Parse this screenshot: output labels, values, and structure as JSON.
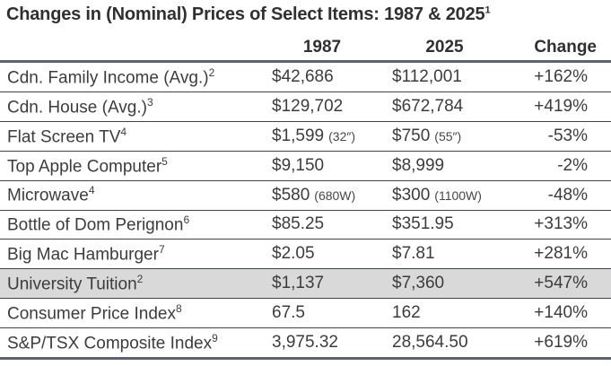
{
  "title": {
    "text": "Changes in (Nominal) Prices of Select Items: 1987 & 2025",
    "superscript": "1"
  },
  "header": {
    "y1987": "1987",
    "y2025": "2025",
    "change": "Change"
  },
  "table": {
    "rows": [
      {
        "item": "Cdn. Family Income (Avg.)",
        "sup": "2",
        "p1987": "$42,686",
        "n1987": "",
        "p2025": "$112,001",
        "n2025": "",
        "change": "+162%",
        "highlighted": false
      },
      {
        "item": "Cdn. House (Avg.)",
        "sup": "3",
        "p1987": "$129,702",
        "n1987": "",
        "p2025": "$672,784",
        "n2025": "",
        "change": "+419%",
        "highlighted": false
      },
      {
        "item": "Flat Screen TV",
        "sup": "4",
        "p1987": "$1,599",
        "n1987": "(32″)",
        "p2025": "$750",
        "n2025": "(55″)",
        "change": "-53%",
        "highlighted": false
      },
      {
        "item": "Top Apple Computer",
        "sup": "5",
        "p1987": "$9,150",
        "n1987": "",
        "p2025": "$8,999",
        "n2025": "",
        "change": "-2%",
        "highlighted": false
      },
      {
        "item": "Microwave",
        "sup": "4",
        "p1987": "$580",
        "n1987": "(680W)",
        "p2025": "$300",
        "n2025": "(1100W)",
        "change": "-48%",
        "highlighted": false
      },
      {
        "item": "Bottle of Dom Perignon",
        "sup": "6",
        "p1987": "$85.25",
        "n1987": "",
        "p2025": "$351.95",
        "n2025": "",
        "change": "+313%",
        "highlighted": false
      },
      {
        "item": "Big Mac Hamburger",
        "sup": "7",
        "p1987": "$2.05",
        "n1987": "",
        "p2025": "$7.81",
        "n2025": "",
        "change": "+281%",
        "highlighted": false
      },
      {
        "item": "University Tuition",
        "sup": "2",
        "p1987": "$1,137",
        "n1987": "",
        "p2025": "$7,360",
        "n2025": "",
        "change": "+547%",
        "highlighted": true
      },
      {
        "item": "Consumer Price Index",
        "sup": "8",
        "p1987": "67.5",
        "n1987": "",
        "p2025": "162",
        "n2025": "",
        "change": "+140%",
        "highlighted": false
      },
      {
        "item": "S&P/TSX Composite Index",
        "sup": "9",
        "p1987": "3,975.32",
        "n1987": "",
        "p2025": "28,564.50",
        "n2025": "",
        "change": "+619%",
        "highlighted": false
      }
    ]
  },
  "colors": {
    "highlight_row_bg": "#d9d9d9",
    "thick_border": "#59646e",
    "thin_border": "#3b444d",
    "text": "#3c3c3c",
    "title_text": "#303030"
  },
  "chart_data": {
    "type": "table",
    "title": "Changes in (Nominal) Prices of Select Items: 1987 & 2025¹",
    "columns": [
      "Item",
      "1987",
      "2025",
      "Change"
    ],
    "rows": [
      [
        "Cdn. Family Income (Avg.)²",
        "$42,686",
        "$112,001",
        "+162%"
      ],
      [
        "Cdn. House (Avg.)³",
        "$129,702",
        "$672,784",
        "+419%"
      ],
      [
        "Flat Screen TV⁴",
        "$1,599 (32″)",
        "$750 (55″)",
        "-53%"
      ],
      [
        "Top Apple Computer⁵",
        "$9,150",
        "$8,999",
        "-2%"
      ],
      [
        "Microwave⁴",
        "$580 (680W)",
        "$300 (1100W)",
        "-48%"
      ],
      [
        "Bottle of Dom Perignon⁶",
        "$85.25",
        "$351.95",
        "+313%"
      ],
      [
        "Big Mac Hamburger⁷",
        "$2.05",
        "$7.81",
        "+281%"
      ],
      [
        "University Tuition²",
        "$1,137",
        "$7,360",
        "+547%"
      ],
      [
        "Consumer Price Index⁸",
        "67.5",
        "162",
        "+140%"
      ],
      [
        "S&P/TSX Composite Index⁹",
        "3,975.32",
        "28,564.50",
        "+619%"
      ]
    ],
    "highlighted_row_index": 7
  }
}
